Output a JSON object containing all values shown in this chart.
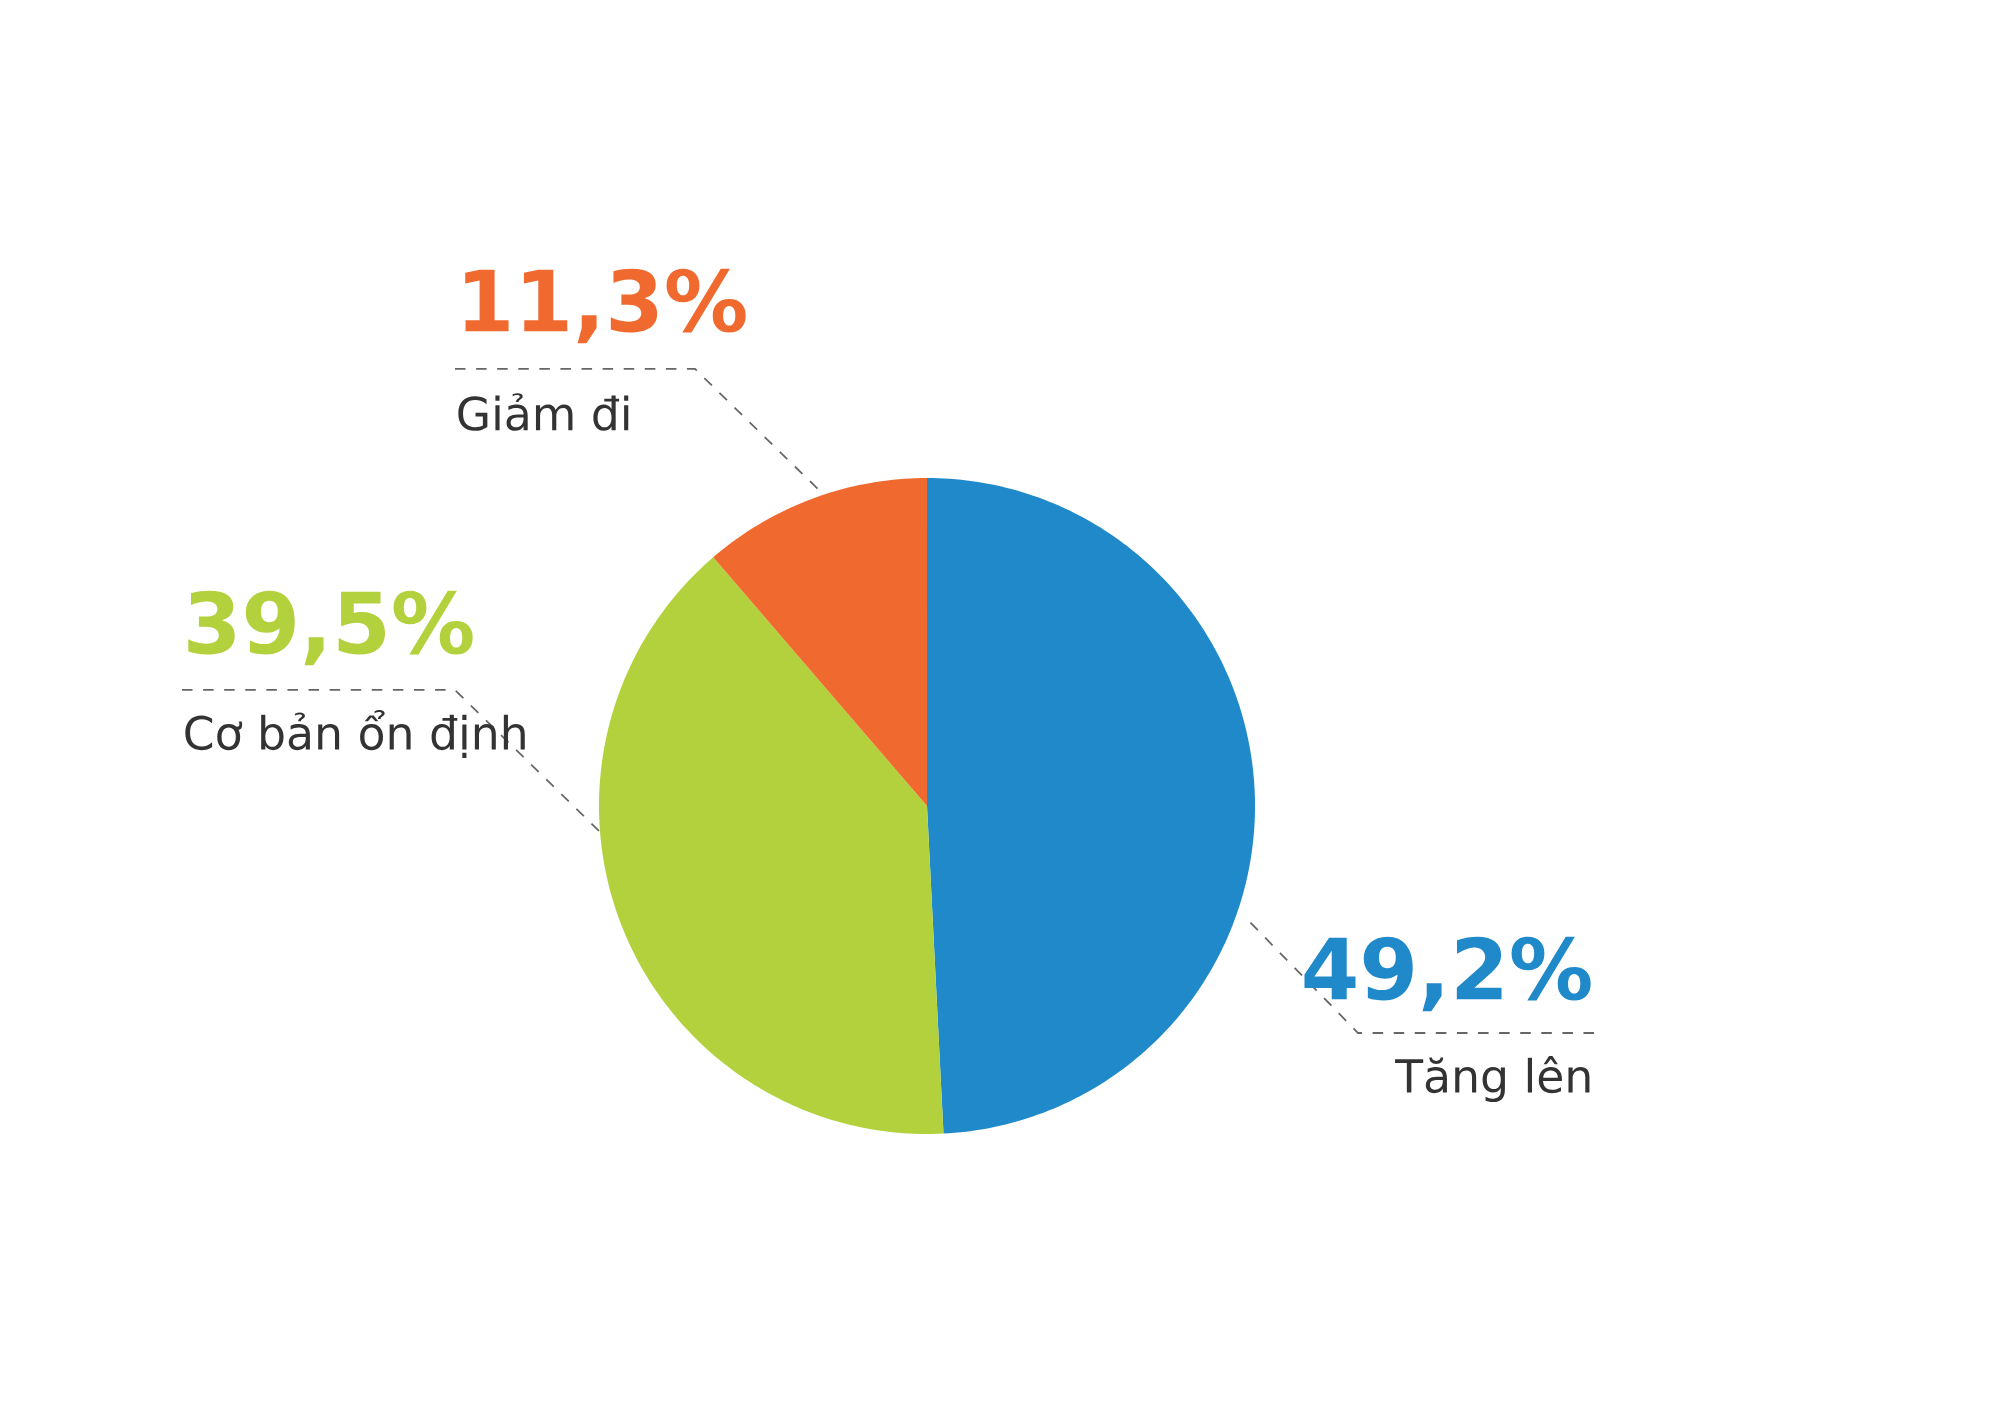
{
  "chart_data": {
    "type": "pie",
    "categories": [
      "Tăng lên",
      "Cơ bản ổn định",
      "Giảm đi"
    ],
    "values": [
      49.2,
      39.5,
      11.3
    ],
    "colors": [
      "#2089c9",
      "#b2d13d",
      "#f06a2f"
    ],
    "value_labels": [
      "49,2%",
      "39,5%",
      "11,3%"
    ]
  }
}
